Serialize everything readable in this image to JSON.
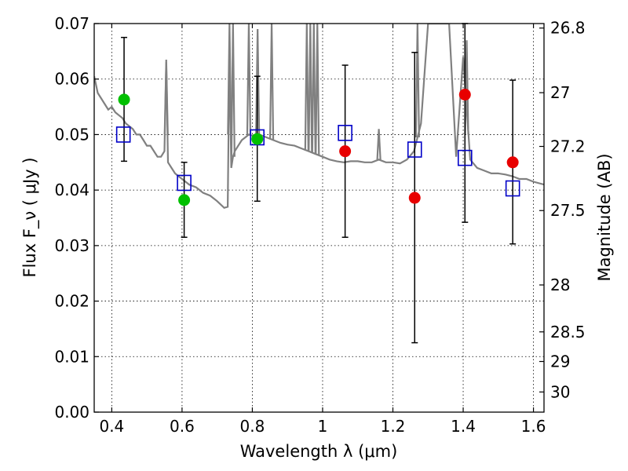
{
  "chart_data": {
    "type": "scatter",
    "xlabel": "Wavelength  λ (μm)",
    "ylabel": "Flux  F_ν  ( μJy )",
    "ylabel_right": "Magnitude (AB)",
    "xlim": [
      0.35,
      1.63
    ],
    "ylim": [
      0.0,
      0.07
    ],
    "grid": true,
    "x_ticks": [
      {
        "value": 0.4,
        "label": "0.4"
      },
      {
        "value": 0.6,
        "label": "0.6"
      },
      {
        "value": 0.8,
        "label": "0.8"
      },
      {
        "value": 1.0,
        "label": "1"
      },
      {
        "value": 1.2,
        "label": "1.2"
      },
      {
        "value": 1.4,
        "label": "1.4"
      },
      {
        "value": 1.6,
        "label": "1.6"
      }
    ],
    "y_ticks": [
      {
        "value": 0.0,
        "label": "0.00"
      },
      {
        "value": 0.01,
        "label": "0.01"
      },
      {
        "value": 0.02,
        "label": "0.02"
      },
      {
        "value": 0.03,
        "label": "0.03"
      },
      {
        "value": 0.04,
        "label": "0.04"
      },
      {
        "value": 0.05,
        "label": "0.05"
      },
      {
        "value": 0.06,
        "label": "0.06"
      },
      {
        "value": 0.07,
        "label": "0.07"
      }
    ],
    "right_ticks": [
      {
        "mag": 26.8,
        "label": "26.8"
      },
      {
        "mag": 27.0,
        "label": "27"
      },
      {
        "mag": 27.2,
        "label": "27.2"
      },
      {
        "mag": 27.5,
        "label": "27.5"
      },
      {
        "mag": 28.0,
        "label": "28"
      },
      {
        "mag": 28.5,
        "label": "28.5"
      },
      {
        "mag": 29.0,
        "label": "29"
      },
      {
        "mag": 30.0,
        "label": "30"
      }
    ],
    "colors": {
      "model": "#808080",
      "green_points": "#00c000",
      "red_points": "#e80000",
      "blue_squares": "#0000c8",
      "error_bars": "#000000"
    },
    "model_spectrum": {
      "x": [
        0.35,
        0.36,
        0.37,
        0.38,
        0.39,
        0.4,
        0.41,
        0.42,
        0.43,
        0.44,
        0.45,
        0.46,
        0.47,
        0.48,
        0.49,
        0.5,
        0.51,
        0.52,
        0.53,
        0.54,
        0.55,
        0.555,
        0.56,
        0.57,
        0.58,
        0.59,
        0.6,
        0.61,
        0.62,
        0.64,
        0.66,
        0.68,
        0.7,
        0.72,
        0.73,
        0.735,
        0.74,
        0.745,
        0.75,
        0.76,
        0.77,
        0.78,
        0.79,
        0.8,
        0.81,
        0.82,
        0.84,
        0.86,
        0.88,
        0.9,
        0.92,
        0.94,
        0.96,
        0.98,
        1.0,
        1.02,
        1.04,
        1.06,
        1.08,
        1.1,
        1.12,
        1.14,
        1.16,
        1.18,
        1.2,
        1.22,
        1.24,
        1.26,
        1.28,
        1.3,
        1.32,
        1.34,
        1.36,
        1.38,
        1.4,
        1.42,
        1.44,
        1.46,
        1.48,
        1.5,
        1.52,
        1.54,
        1.56,
        1.58,
        1.6,
        1.63
      ],
      "y": [
        0.0605,
        0.0575,
        0.0565,
        0.0555,
        0.0545,
        0.055,
        0.054,
        0.0535,
        0.053,
        0.052,
        0.0515,
        0.051,
        0.05,
        0.05,
        0.049,
        0.048,
        0.048,
        0.047,
        0.046,
        0.046,
        0.047,
        0.063,
        0.045,
        0.044,
        0.043,
        0.0425,
        0.042,
        0.0415,
        0.041,
        0.0405,
        0.0395,
        0.039,
        0.038,
        0.0368,
        0.037,
        0.065,
        0.044,
        0.046,
        0.047,
        0.048,
        0.049,
        0.0495,
        0.05,
        0.0498,
        0.05,
        0.05,
        0.0495,
        0.049,
        0.0485,
        0.0482,
        0.048,
        0.0475,
        0.047,
        0.0465,
        0.046,
        0.0455,
        0.0452,
        0.045,
        0.0452,
        0.0452,
        0.045,
        0.045,
        0.0455,
        0.045,
        0.045,
        0.0448,
        0.0455,
        0.047,
        0.052,
        0.07,
        0.07,
        0.07,
        0.07,
        0.046,
        0.064,
        0.0455,
        0.044,
        0.0435,
        0.043,
        0.043,
        0.0428,
        0.0425,
        0.042,
        0.042,
        0.0415,
        0.041
      ]
    },
    "model_spikes": [
      {
        "x": 0.555,
        "y": 0.0635
      },
      {
        "x": 0.735,
        "y": 0.07
      },
      {
        "x": 0.745,
        "y": 0.07
      },
      {
        "x": 0.79,
        "y": 0.07
      },
      {
        "x": 0.815,
        "y": 0.069
      },
      {
        "x": 0.855,
        "y": 0.07
      },
      {
        "x": 0.955,
        "y": 0.07
      },
      {
        "x": 0.965,
        "y": 0.07
      },
      {
        "x": 0.975,
        "y": 0.07
      },
      {
        "x": 0.985,
        "y": 0.07
      },
      {
        "x": 1.16,
        "y": 0.051
      },
      {
        "x": 1.27,
        "y": 0.07
      },
      {
        "x": 1.41,
        "y": 0.067
      }
    ],
    "model_points": [
      {
        "x": 0.433,
        "y": 0.05
      },
      {
        "x": 0.606,
        "y": 0.0413
      },
      {
        "x": 0.814,
        "y": 0.0495
      },
      {
        "x": 1.064,
        "y": 0.0503
      },
      {
        "x": 1.262,
        "y": 0.0473
      },
      {
        "x": 1.405,
        "y": 0.0458
      },
      {
        "x": 1.541,
        "y": 0.0403
      }
    ],
    "observed_hst_optical": [
      {
        "x": 0.435,
        "y": 0.0563,
        "yerr_low": 0.0452,
        "yerr_high": 0.0675
      },
      {
        "x": 0.606,
        "y": 0.0382,
        "yerr_low": 0.0315,
        "yerr_high": 0.045
      },
      {
        "x": 0.814,
        "y": 0.0492,
        "yerr_low": 0.038,
        "yerr_high": 0.0605
      }
    ],
    "observed_hst_nir": [
      {
        "x": 1.064,
        "y": 0.047,
        "yerr_low": 0.0315,
        "yerr_high": 0.0625
      },
      {
        "x": 1.262,
        "y": 0.0386,
        "yerr_low": 0.0125,
        "yerr_high": 0.0648
      },
      {
        "x": 1.405,
        "y": 0.0572,
        "yerr_low": 0.0342,
        "yerr_high": 0.07
      },
      {
        "x": 1.541,
        "y": 0.045,
        "yerr_low": 0.0303,
        "yerr_high": 0.0598
      }
    ]
  }
}
